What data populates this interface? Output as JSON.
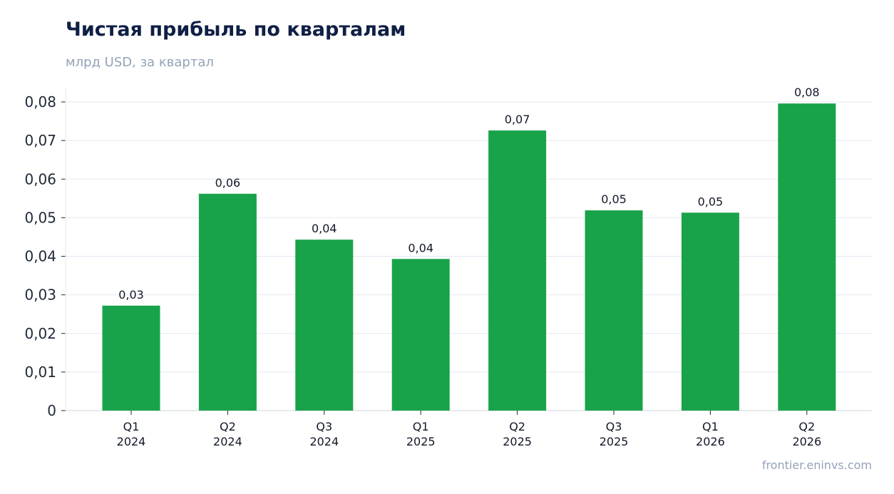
{
  "header": {
    "title": "Чистая прибыль по кварталам",
    "subtitle": "млрд USD, за квартал"
  },
  "footer": {
    "watermark": "frontier.eninvs.com"
  },
  "colors": {
    "bar": "#18a34a",
    "grid": "#e2e8f0",
    "axis": "#cbd5e1"
  },
  "chart_data": {
    "type": "bar",
    "title": "Чистая прибыль по кварталам",
    "subtitle": "млрд USD, за квартал",
    "categories": [
      [
        "Q1",
        "2024"
      ],
      [
        "Q2",
        "2024"
      ],
      [
        "Q3",
        "2024"
      ],
      [
        "Q1",
        "2025"
      ],
      [
        "Q2",
        "2025"
      ],
      [
        "Q3",
        "2025"
      ],
      [
        "Q1",
        "2026"
      ],
      [
        "Q2",
        "2026"
      ]
    ],
    "values": [
      0.0272,
      0.0562,
      0.0443,
      0.0393,
      0.0726,
      0.0519,
      0.0513,
      0.0796
    ],
    "data_labels": [
      "0,03",
      "0,06",
      "0,04",
      "0,04",
      "0,07",
      "0,05",
      "0,05",
      "0,08"
    ],
    "yticks": [
      0,
      0.01,
      0.02,
      0.03,
      0.04,
      0.05,
      0.06,
      0.07,
      0.08
    ],
    "ytick_labels": [
      "0",
      "0,01",
      "0,02",
      "0,03",
      "0,04",
      "0,05",
      "0,06",
      "0,07",
      "0,08"
    ],
    "ylim": [
      0,
      0.08
    ],
    "grid": true,
    "legend": "none"
  }
}
